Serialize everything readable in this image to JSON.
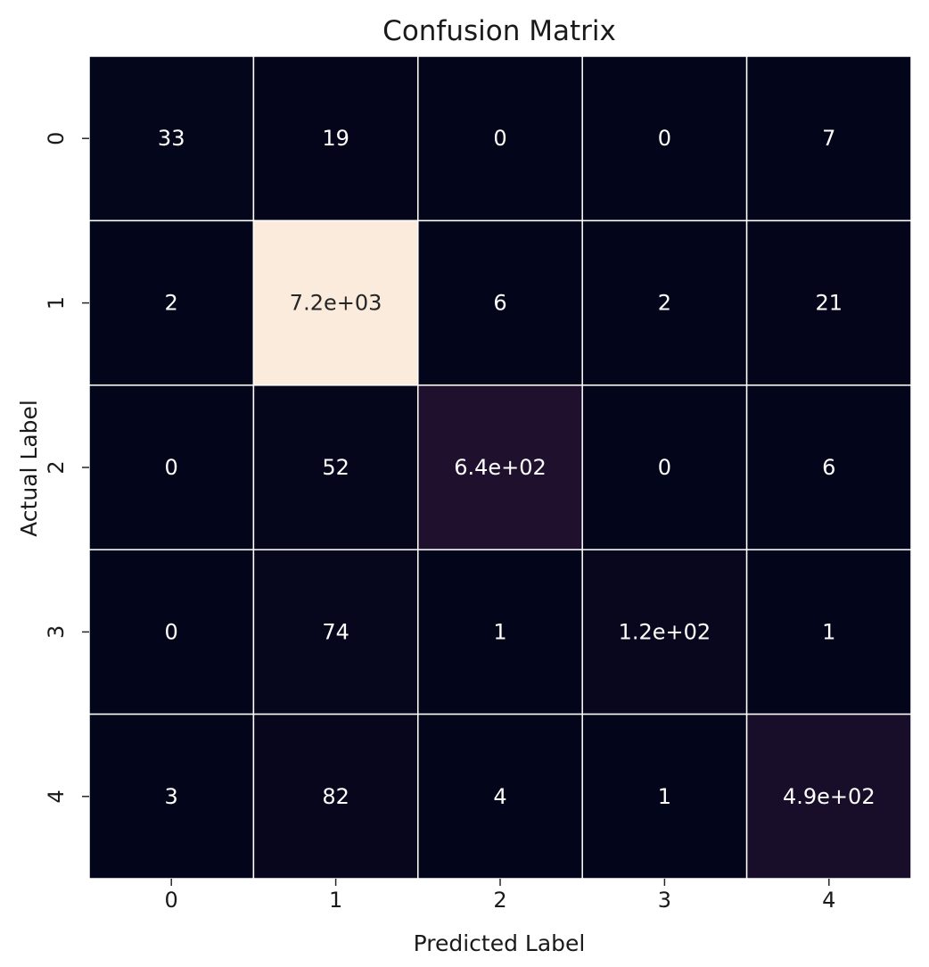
{
  "chart_data": {
    "type": "heatmap",
    "title": "Confusion Matrix",
    "xlabel": "Predicted Label",
    "ylabel": "Actual Label",
    "x_categories": [
      "0",
      "1",
      "2",
      "3",
      "4"
    ],
    "y_categories": [
      "0",
      "1",
      "2",
      "3",
      "4"
    ],
    "values": [
      [
        33,
        19,
        0,
        0,
        7
      ],
      [
        2,
        7200,
        6,
        2,
        21
      ],
      [
        0,
        52,
        640,
        0,
        6
      ],
      [
        0,
        74,
        1,
        120,
        1
      ],
      [
        3,
        82,
        4,
        1,
        490
      ]
    ],
    "cell_labels": [
      [
        "33",
        "19",
        "0",
        "0",
        "7"
      ],
      [
        "2",
        "7.2e+03",
        "6",
        "2",
        "21"
      ],
      [
        "0",
        "52",
        "6.4e+02",
        "0",
        "6"
      ],
      [
        "0",
        "74",
        "1",
        "1.2e+02",
        "1"
      ],
      [
        "3",
        "82",
        "4",
        "1",
        "4.9e+02"
      ]
    ],
    "colormap": "rocket",
    "color_low": "#03051a",
    "color_high": "#faebdd",
    "grid_line_color": "#ffffff",
    "colorbar": false
  }
}
